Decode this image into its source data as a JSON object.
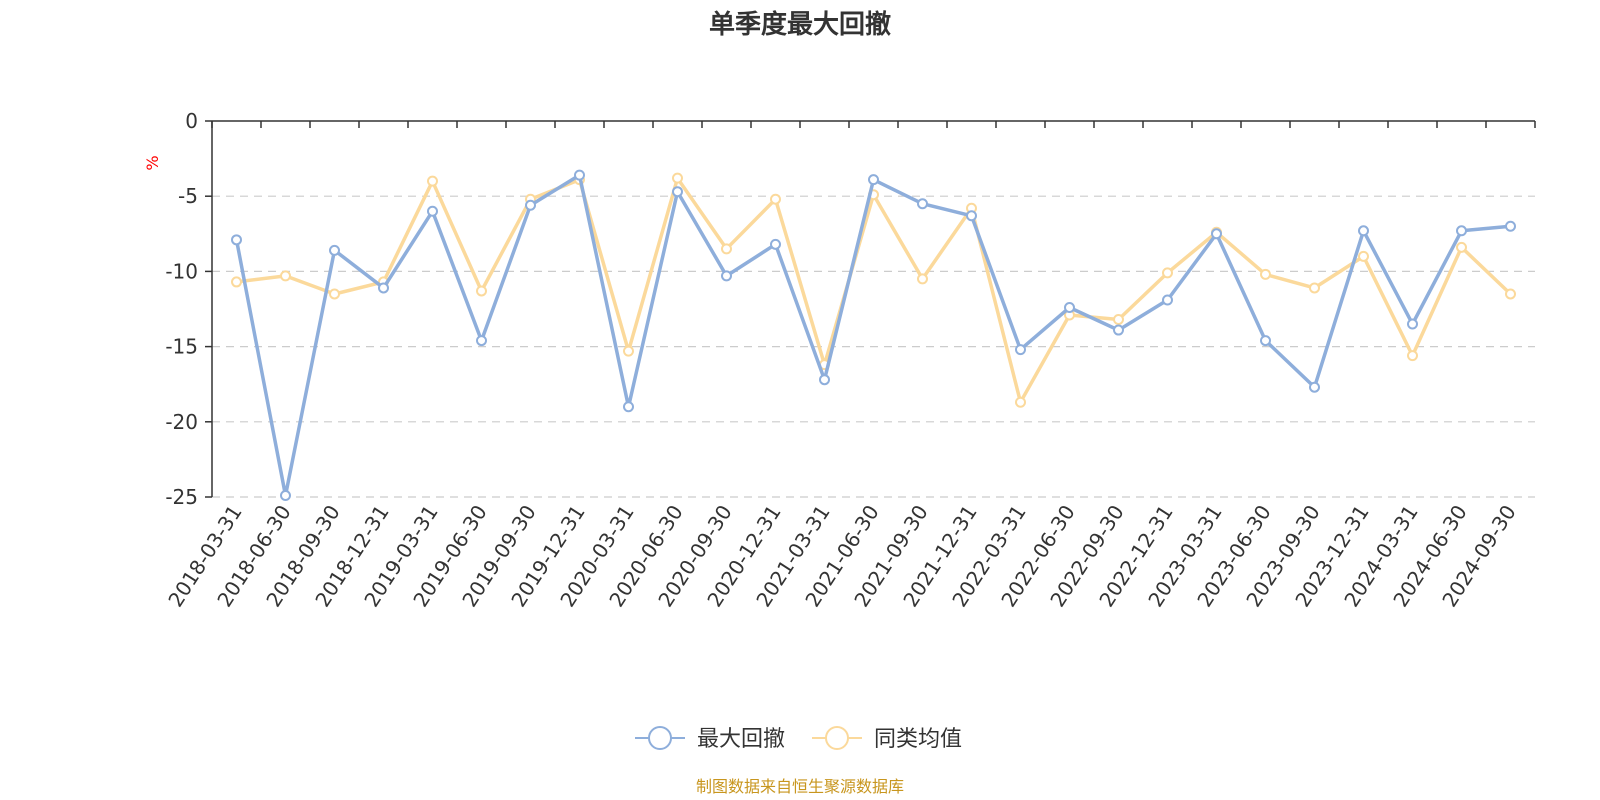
{
  "chart_data": {
    "type": "line",
    "title": "单季度最大回撤",
    "ylabel": "%",
    "xlabel": "",
    "ylim": [
      -25,
      0
    ],
    "yticks": [
      0,
      -5,
      -10,
      -15,
      -20,
      -25
    ],
    "ytick_labels": [
      "0",
      "-5",
      "-10",
      "-15",
      "-20",
      "-25"
    ],
    "grid": true,
    "legend_position": "bottom-center",
    "categories": [
      "2018-03-31",
      "2018-06-30",
      "2018-09-30",
      "2018-12-31",
      "2019-03-31",
      "2019-06-30",
      "2019-09-30",
      "2019-12-31",
      "2020-03-31",
      "2020-06-30",
      "2020-09-30",
      "2020-12-31",
      "2021-03-31",
      "2021-06-30",
      "2021-09-30",
      "2021-12-31",
      "2022-03-31",
      "2022-06-30",
      "2022-09-30",
      "2022-12-31",
      "2023-03-31",
      "2023-06-30",
      "2023-09-30",
      "2023-12-31",
      "2024-03-31",
      "2024-06-30",
      "2024-09-30"
    ],
    "series": [
      {
        "name": "最大回撤",
        "color": "#8eaedb",
        "values": [
          -7.9,
          -24.9,
          -8.6,
          -11.1,
          -6.0,
          -14.6,
          -5.6,
          -3.6,
          -19.0,
          -4.7,
          -10.3,
          -8.2,
          -17.2,
          -3.9,
          -5.5,
          -6.3,
          -15.2,
          -12.4,
          -13.9,
          -11.9,
          -7.5,
          -14.6,
          -17.7,
          -7.3,
          -13.5,
          -7.3,
          -7.0
        ]
      },
      {
        "name": "同类均值",
        "color": "#fbd99b",
        "values": [
          -10.7,
          -10.3,
          -11.5,
          -10.7,
          -4.0,
          -11.3,
          -5.2,
          -3.9,
          -15.3,
          -3.8,
          -8.5,
          -5.2,
          -16.2,
          -4.9,
          -10.5,
          -5.8,
          -18.7,
          -12.9,
          -13.2,
          -10.1,
          -7.4,
          -10.2,
          -11.1,
          -9.0,
          -15.6,
          -8.4,
          -11.5
        ]
      }
    ]
  },
  "footer": {
    "source": "制图数据来自恒生聚源数据库"
  }
}
